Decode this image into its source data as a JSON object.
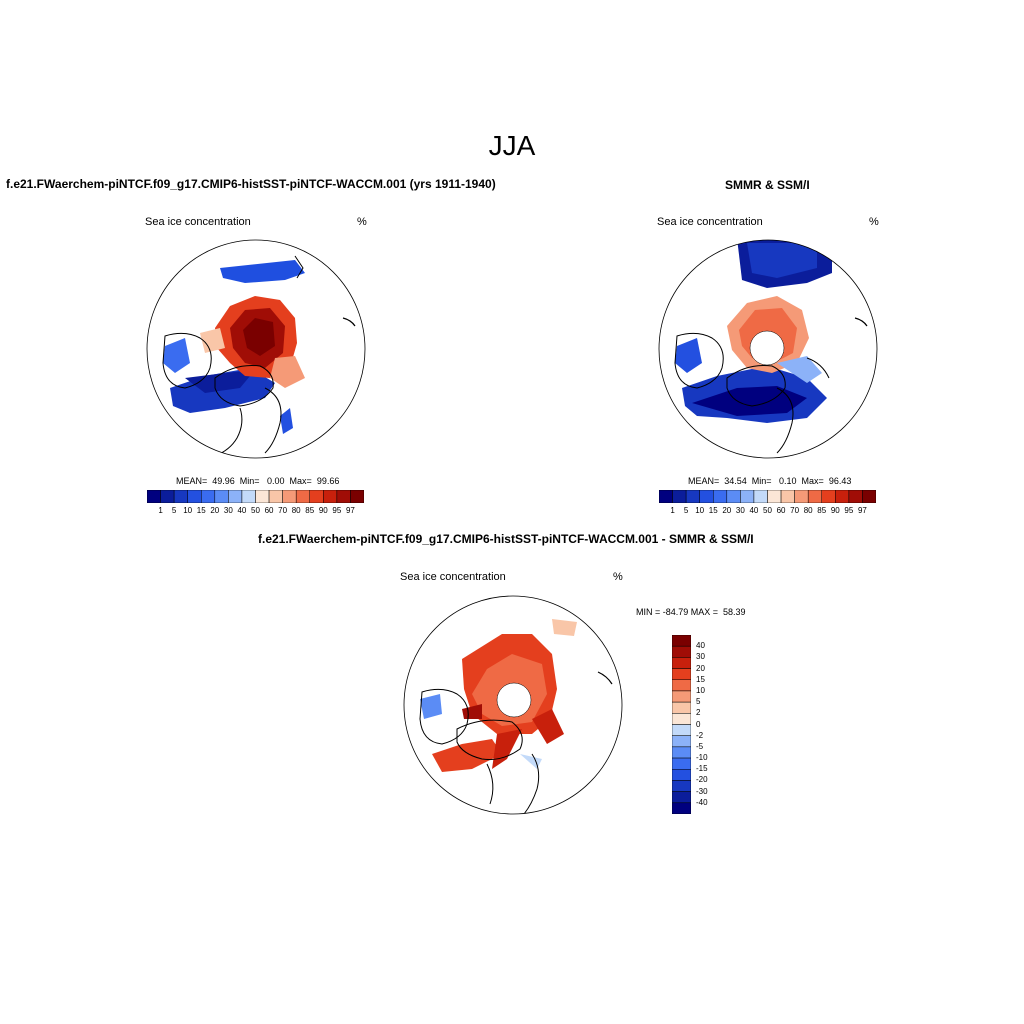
{
  "page_title": "JJA",
  "panels": {
    "model": {
      "title": "f.e21.FWaerchem-piNTCF.f09_g17.CMIP6-histSST-piNTCF-WACCM.001 (yrs 1911-1940)",
      "variable": "Sea ice concentration",
      "unit": "%",
      "stats": "MEAN=  49.96  Min=   0.00  Max=  99.66"
    },
    "obs": {
      "title": "SMMR & SSM/I",
      "variable": "Sea ice concentration",
      "unit": "%",
      "stats": "MEAN=  34.54  Min=   0.10  Max=  96.43"
    },
    "diff": {
      "title": "f.e21.FWaerchem-piNTCF.f09_g17.CMIP6-histSST-piNTCF-WACCM.001 - SMMR & SSM/I",
      "variable": "Sea ice concentration",
      "unit": "%",
      "stats": "MIN = -84.79 MAX =  58.39"
    }
  },
  "colorbar_main": {
    "labels": [
      "1",
      "5",
      "10",
      "15",
      "20",
      "30",
      "40",
      "50",
      "60",
      "70",
      "80",
      "85",
      "90",
      "95",
      "97"
    ],
    "colors": [
      "#00007f",
      "#0b1d9b",
      "#1738c0",
      "#2350e0",
      "#3a6cf0",
      "#5b8cf5",
      "#8cb2f8",
      "#c3daf9",
      "#fbe6d6",
      "#f9c6a8",
      "#f59a77",
      "#ef6a45",
      "#e43f1e",
      "#c8200c",
      "#a00d06",
      "#7a0000"
    ]
  },
  "colorbar_diff": {
    "labels": [
      "40",
      "30",
      "20",
      "15",
      "10",
      "5",
      "2",
      "0",
      "-2",
      "-5",
      "-10",
      "-15",
      "-20",
      "-30",
      "-40"
    ],
    "colors": [
      "#7a0000",
      "#a00d06",
      "#c8200c",
      "#e43f1e",
      "#ef6a45",
      "#f59a77",
      "#f9c6a8",
      "#fbe6d6",
      "#c3daf9",
      "#8cb2f8",
      "#5b8cf5",
      "#3a6cf0",
      "#2350e0",
      "#1738c0",
      "#0b1d9b",
      "#00007f"
    ]
  }
}
